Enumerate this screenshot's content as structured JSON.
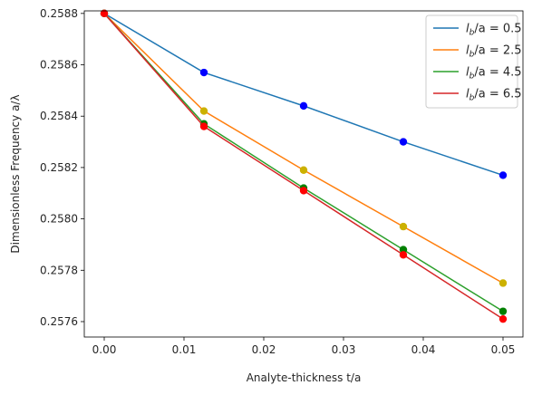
{
  "chart_data": {
    "type": "line",
    "title": "",
    "xlabel": "Analyte-thickness t/a",
    "ylabel": "Dimensionless Frequency a/λ",
    "xlim": [
      -0.0025,
      0.0525
    ],
    "ylim": [
      0.25754,
      0.25881
    ],
    "grid": false,
    "legend_position": "top-right",
    "x": [
      0.0,
      0.0125,
      0.025,
      0.0375,
      0.05
    ],
    "x_ticks": [
      "0.00",
      "0.01",
      "0.02",
      "0.03",
      "0.04",
      "0.05"
    ],
    "x_tick_values": [
      0.0,
      0.01,
      0.02,
      0.03,
      0.04,
      0.05
    ],
    "y_ticks": [
      "0.2576",
      "0.2578",
      "0.2580",
      "0.2582",
      "0.2584",
      "0.2586",
      "0.2588"
    ],
    "y_tick_values": [
      0.2576,
      0.2578,
      0.258,
      0.2582,
      0.2584,
      0.2586,
      0.2588
    ],
    "series": [
      {
        "name": "l_b/a = 0.5",
        "legend_var": "l",
        "legend_sub": "b",
        "legend_rest": "/a = 0.5",
        "color": "#1f77b4",
        "marker_color": "#0000ff",
        "values": [
          0.2588,
          0.25857,
          0.25844,
          0.2583,
          0.25817
        ]
      },
      {
        "name": "l_b/a = 2.5",
        "legend_var": "l",
        "legend_sub": "b",
        "legend_rest": "/a = 2.5",
        "color": "#ff7f0e",
        "marker_color": "#ccb100",
        "values": [
          0.2588,
          0.25842,
          0.25819,
          0.25797,
          0.25775
        ]
      },
      {
        "name": "l_b/a = 4.5",
        "legend_var": "l",
        "legend_sub": "b",
        "legend_rest": "/a = 4.5",
        "color": "#2ca02c",
        "marker_color": "#008000",
        "values": [
          0.2588,
          0.25837,
          0.25812,
          0.25788,
          0.25764
        ]
      },
      {
        "name": "l_b/a = 6.5",
        "legend_var": "l",
        "legend_sub": "b",
        "legend_rest": "/a = 6.5",
        "color": "#d62728",
        "marker_color": "#ff0000",
        "values": [
          0.2588,
          0.25836,
          0.25811,
          0.25786,
          0.25761
        ]
      }
    ]
  }
}
